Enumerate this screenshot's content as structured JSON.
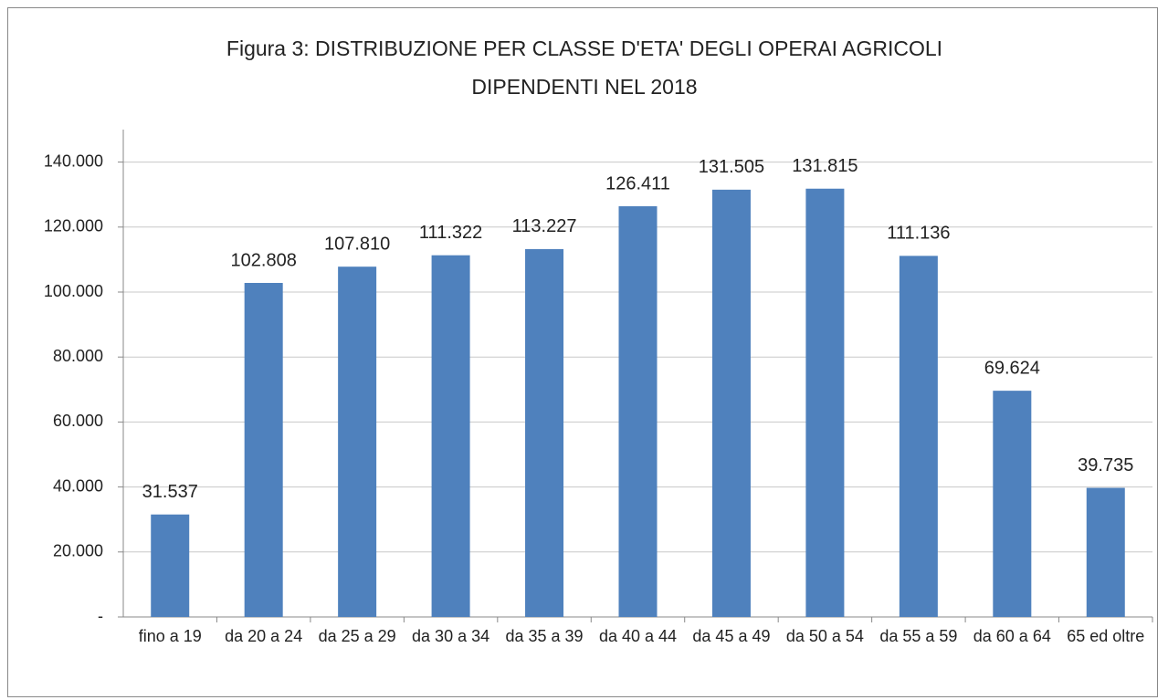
{
  "chart_data": {
    "type": "bar",
    "title": "Figura 3: DISTRIBUZIONE PER CLASSE D'ETA' DEGLI OPERAI AGRICOLI DIPENDENTI NEL 2018",
    "categories": [
      "fino a 19",
      "da 20 a 24",
      "da 25 a 29",
      "da 30 a 34",
      "da 35 a 39",
      "da 40 a 44",
      "da 45 a 49",
      "da 50 a 54",
      "da 55 a 59",
      "da 60 a 64",
      "65 ed oltre"
    ],
    "values": [
      31537,
      102808,
      107810,
      111322,
      113227,
      126411,
      131505,
      131815,
      111136,
      69624,
      39735
    ],
    "value_labels": [
      "31.537",
      "102.808",
      "107.810",
      "111.322",
      "113.227",
      "126.411",
      "131.505",
      "131.815",
      "111.136",
      "69.624",
      "39.735"
    ],
    "color": "#4f81bd",
    "ylim": [
      0,
      150000
    ],
    "yticks": [
      {
        "value": 0,
        "label": "-"
      },
      {
        "value": 20000,
        "label": "20.000"
      },
      {
        "value": 40000,
        "label": "40.000"
      },
      {
        "value": 60000,
        "label": "60.000"
      },
      {
        "value": 80000,
        "label": "80.000"
      },
      {
        "value": 100000,
        "label": "100.000"
      },
      {
        "value": 120000,
        "label": "120.000"
      },
      {
        "value": 140000,
        "label": "140.000"
      }
    ],
    "grid": true
  }
}
